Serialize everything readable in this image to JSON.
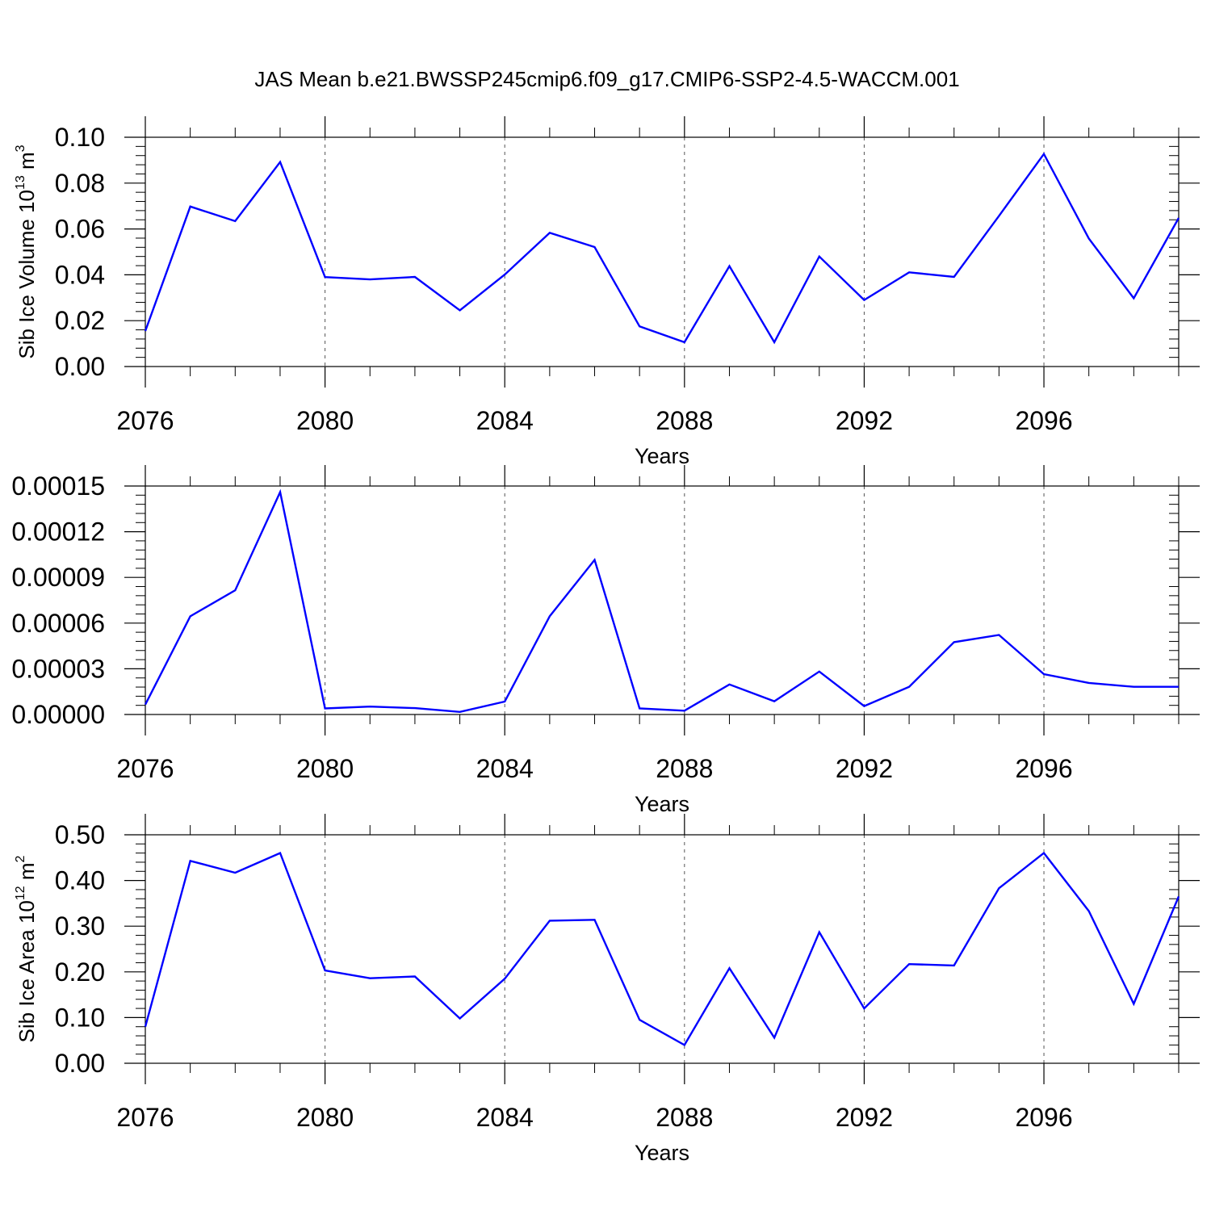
{
  "title": "JAS Mean b.e21.BWSSP245cmip6.f09_g17.CMIP6-SSP2-4.5-WACCM.001",
  "colors": {
    "line": "#0000ff",
    "axis": "#000000",
    "grid": "#555555"
  },
  "chart_data": [
    {
      "type": "line",
      "ylabel_main": "Sib Ice Volume 10",
      "ylabel_sup": "13",
      "ylabel_unit": " m",
      "ylabel_unit_sup": "3",
      "xlabel": "Years",
      "xlim": [
        2076,
        2099
      ],
      "ylim": [
        0,
        0.1
      ],
      "xticks": [
        2076,
        2080,
        2084,
        2088,
        2092,
        2096
      ],
      "xtick_labels": [
        "2076",
        "2080",
        "2084",
        "2088",
        "2092",
        "2096"
      ],
      "yticks": [
        0,
        0.02,
        0.04,
        0.06,
        0.08,
        0.1
      ],
      "ytick_labels": [
        "0.00",
        "0.02",
        "0.04",
        "0.06",
        "0.08",
        "0.10"
      ],
      "grid": "vertical dashed at major x ticks",
      "x": [
        2076,
        2077,
        2078,
        2079,
        2080,
        2081,
        2082,
        2083,
        2084,
        2085,
        2086,
        2087,
        2088,
        2089,
        2090,
        2091,
        2092,
        2093,
        2094,
        2095,
        2096,
        2097,
        2098,
        2099
      ],
      "y": [
        0.0155,
        0.0698,
        0.0634,
        0.0892,
        0.039,
        0.038,
        0.0391,
        0.0245,
        0.0401,
        0.0583,
        0.0521,
        0.0175,
        0.0106,
        0.0438,
        0.0106,
        0.048,
        0.029,
        0.0411,
        0.0391,
        0.0657,
        0.0927,
        0.0558,
        0.0298,
        0.0648
      ]
    },
    {
      "type": "line",
      "ylabel_main": "",
      "xlabel": "Years",
      "xlim": [
        2076,
        2099
      ],
      "ylim": [
        0,
        0.00015
      ],
      "xticks": [
        2076,
        2080,
        2084,
        2088,
        2092,
        2096
      ],
      "xtick_labels": [
        "2076",
        "2080",
        "2084",
        "2088",
        "2092",
        "2096"
      ],
      "yticks": [
        0,
        3e-05,
        6e-05,
        9e-05,
        0.00012,
        0.00015
      ],
      "ytick_labels": [
        "0.00000",
        "0.00003",
        "0.00006",
        "0.00009",
        "0.00012",
        "0.00015"
      ],
      "grid": "vertical dashed at major x ticks",
      "x": [
        2076,
        2077,
        2078,
        2079,
        2080,
        2081,
        2082,
        2083,
        2084,
        2085,
        2086,
        2087,
        2088,
        2089,
        2090,
        2091,
        2092,
        2093,
        2094,
        2095,
        2096,
        2097,
        2098,
        2099
      ],
      "y": [
        6.5e-06,
        6.45e-05,
        8.15e-05,
        0.000146,
        4e-06,
        5.2e-06,
        4.2e-06,
        1.7e-06,
        8.5e-06,
        6.45e-05,
        0.0001015,
        4e-06,
        2.5e-06,
        1.97e-05,
        8.7e-06,
        2.82e-05,
        5.5e-06,
        1.82e-05,
        4.75e-05,
        5.22e-05,
        2.65e-05,
        2.07e-05,
        1.82e-05,
        1.82e-05
      ]
    },
    {
      "type": "line",
      "ylabel_main": "Sib Ice Area 10",
      "ylabel_sup": "12",
      "ylabel_unit": " m",
      "ylabel_unit_sup": "2",
      "xlabel": "Years",
      "xlim": [
        2076,
        2099
      ],
      "ylim": [
        0,
        0.5
      ],
      "xticks": [
        2076,
        2080,
        2084,
        2088,
        2092,
        2096
      ],
      "xtick_labels": [
        "2076",
        "2080",
        "2084",
        "2088",
        "2092",
        "2096"
      ],
      "yticks": [
        0,
        0.1,
        0.2,
        0.3,
        0.4,
        0.5
      ],
      "ytick_labels": [
        "0.00",
        "0.10",
        "0.20",
        "0.30",
        "0.40",
        "0.50"
      ],
      "grid": "vertical dashed at major x ticks",
      "x": [
        2076,
        2077,
        2078,
        2079,
        2080,
        2081,
        2082,
        2083,
        2084,
        2085,
        2086,
        2087,
        2088,
        2089,
        2090,
        2091,
        2092,
        2093,
        2094,
        2095,
        2096,
        2097,
        2098,
        2099
      ],
      "y": [
        0.08,
        0.443,
        0.417,
        0.46,
        0.203,
        0.186,
        0.19,
        0.098,
        0.185,
        0.312,
        0.314,
        0.095,
        0.04,
        0.208,
        0.056,
        0.287,
        0.12,
        0.217,
        0.214,
        0.383,
        0.46,
        0.333,
        0.13,
        0.365
      ]
    }
  ]
}
